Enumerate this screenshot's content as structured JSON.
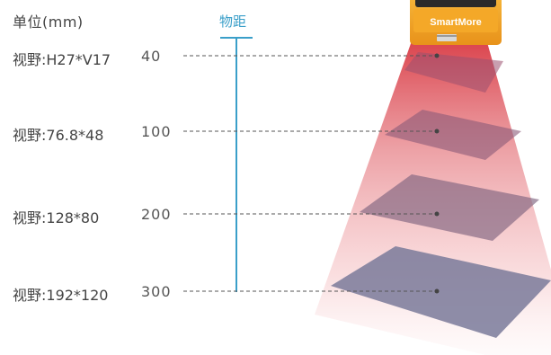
{
  "header": {
    "unit_label": "单位(mm)",
    "axis_title": "物距"
  },
  "rows": [
    {
      "fov": "视野:H27*V17",
      "distance": "40"
    },
    {
      "fov": "视野:76.8*48",
      "distance": "100"
    },
    {
      "fov": "视野:128*80",
      "distance": "200"
    },
    {
      "fov": "视野:192*120",
      "distance": "300"
    }
  ],
  "device": {
    "brand": "SmartMore"
  },
  "colors": {
    "accent": "#3a9fc9",
    "device_body": "#f0a020",
    "beam": "#e0404a",
    "plane": "#7a7a9a"
  }
}
